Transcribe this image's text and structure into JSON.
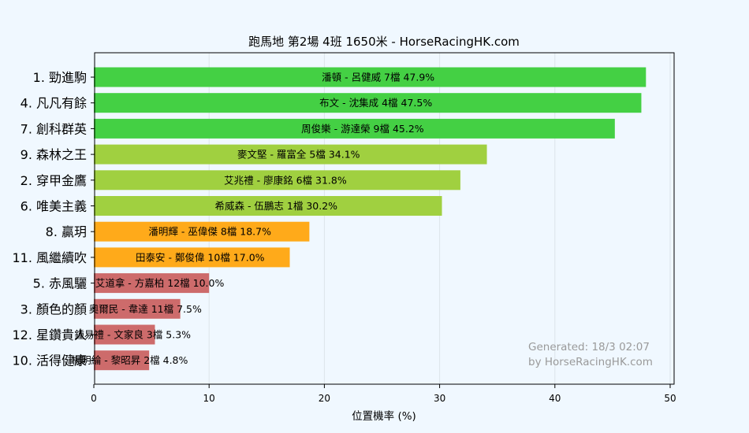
{
  "chart_data": {
    "type": "bar",
    "orientation": "horizontal",
    "title": "跑馬地  第2場  4班  1650米 - HorseRacingHK.com",
    "xlabel": "位置機率 (%)",
    "xlim": [
      0,
      50
    ],
    "xticks": [
      0,
      10,
      20,
      30,
      40,
      50
    ],
    "grid": true,
    "categories": [
      "1. 勁進駒",
      "4. 凡凡有餘",
      "7. 創科群英",
      "9. 森林之王",
      "2. 穿甲金鷹",
      "6. 唯美主義",
      "8. 贏玥",
      "11. 風繼續吹",
      "5. 赤風驪",
      "3. 顏色的顏",
      "12. 星鑽貴人",
      "10. 活得健康"
    ],
    "values": [
      47.9,
      47.5,
      45.2,
      34.1,
      31.8,
      30.2,
      18.7,
      17.0,
      10.0,
      7.5,
      5.3,
      4.8
    ],
    "bar_labels": [
      "潘頓 - 呂健威 7檔  47.9%",
      "布文 - 沈集成 4檔  47.5%",
      "周俊樂 - 游達榮 9檔  45.2%",
      "麥文堅 - 羅富全 5檔  34.1%",
      "艾兆禮 - 廖康銘 6檔  31.8%",
      "希威森 - 伍鵬志 1檔  30.2%",
      "潘明輝 - 巫偉傑 8檔  18.7%",
      "田泰安 - 鄭俊偉 10檔  17.0%",
      "艾道拿 - 方嘉柏 12檔  10.0%",
      "奧爾民 - 韋達 11檔  7.5%",
      "鍾易禮 - 文家良 3檔  5.3%",
      "楊明綸 - 黎昭昇 2檔  4.8%"
    ],
    "colors": [
      "#44d044",
      "#44d044",
      "#44d044",
      "#a0d040",
      "#a0d040",
      "#a0d040",
      "#ffaa1a",
      "#ffaa1a",
      "#cd6b6b",
      "#cd6b6b",
      "#cd6b6b",
      "#cd6b6b"
    ],
    "annotations": [
      "Generated: 18/3 02:07",
      "by HorseRacingHK.com"
    ]
  }
}
